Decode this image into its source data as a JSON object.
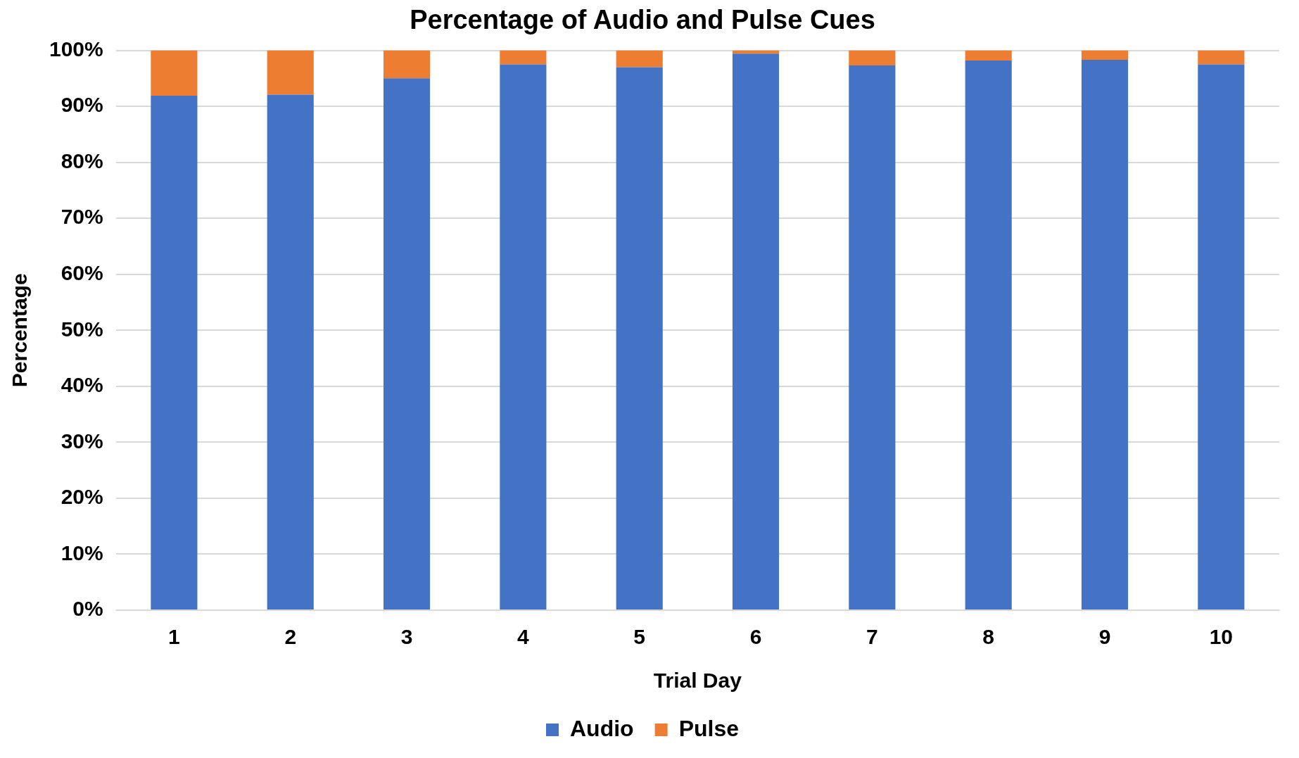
{
  "chart_data": {
    "type": "bar",
    "title": "Percentage of Audio and Pulse Cues",
    "xlabel": "Trial Day",
    "ylabel": "Percentage",
    "categories": [
      "1",
      "2",
      "3",
      "4",
      "5",
      "6",
      "7",
      "8",
      "9",
      "10"
    ],
    "stacked": true,
    "series": [
      {
        "name": "Audio",
        "color": "#4472c4",
        "values": [
          91.9,
          92.1,
          95.0,
          97.5,
          97.0,
          99.4,
          97.3,
          98.2,
          98.3,
          97.5
        ]
      },
      {
        "name": "Pulse",
        "color": "#ed7d31",
        "values": [
          8.1,
          7.9,
          5.0,
          2.5,
          3.0,
          0.6,
          2.7,
          1.8,
          1.7,
          2.5
        ]
      }
    ],
    "ylim": [
      0,
      100
    ],
    "yticks": [
      {
        "value": 0,
        "label": "0%"
      },
      {
        "value": 10,
        "label": "10%"
      },
      {
        "value": 20,
        "label": "20%"
      },
      {
        "value": 30,
        "label": "30%"
      },
      {
        "value": 40,
        "label": "40%"
      },
      {
        "value": 50,
        "label": "50%"
      },
      {
        "value": 60,
        "label": "60%"
      },
      {
        "value": 70,
        "label": "70%"
      },
      {
        "value": 80,
        "label": "80%"
      },
      {
        "value": 90,
        "label": "90%"
      },
      {
        "value": 100,
        "label": "100%"
      }
    ],
    "grid": "y",
    "legend": "bottom"
  }
}
